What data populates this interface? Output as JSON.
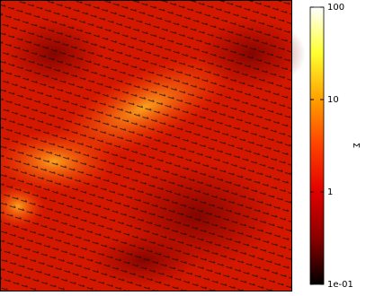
{
  "chart_data": {
    "type": "heatmap",
    "colorbar": {
      "label": "Σ",
      "scale": "log",
      "clim": [
        0.1,
        100
      ],
      "ticks": [
        100,
        10,
        1,
        {
          "value": 0.1,
          "label": "1e-01"
        }
      ],
      "colors": [
        "#000000",
        "#8b0000",
        "#e00000",
        "#ff4000",
        "#ffa000",
        "#ffff30",
        "#ffffff"
      ]
    }
  }
}
